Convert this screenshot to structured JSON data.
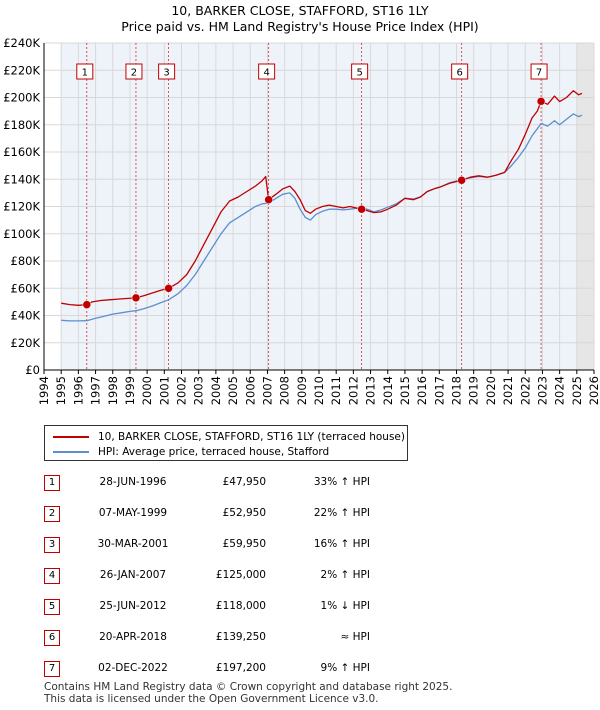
{
  "title_line1": "10, BARKER CLOSE, STAFFORD, ST16 1LY",
  "title_line2": "Price paid vs. HM Land Registry's House Price Index (HPI)",
  "colors": {
    "price": "#c00000",
    "hpi": "#5b8fd0",
    "grid": "#d8d8d8",
    "plot_bg": "#eef3fa",
    "future_bg": "#e6e6e6"
  },
  "chart_data": {
    "type": "line",
    "title": "10, BARKER CLOSE, STAFFORD, ST16 1LY — Price paid vs. HM Land Registry's House Price Index (HPI)",
    "xlabel": "",
    "ylabel": "",
    "xlim": [
      1994,
      2026
    ],
    "ylim": [
      0,
      240000
    ],
    "y_ticks": [
      "£0",
      "£20K",
      "£40K",
      "£60K",
      "£80K",
      "£100K",
      "£120K",
      "£140K",
      "£160K",
      "£180K",
      "£200K",
      "£220K",
      "£240K"
    ],
    "x_ticks": [
      "1994",
      "1995",
      "1996",
      "1997",
      "1998",
      "1999",
      "2000",
      "2001",
      "2002",
      "2003",
      "2004",
      "2005",
      "2006",
      "2007",
      "2008",
      "2009",
      "2010",
      "2011",
      "2012",
      "2013",
      "2014",
      "2015",
      "2016",
      "2017",
      "2018",
      "2019",
      "2020",
      "2021",
      "2022",
      "2023",
      "2024",
      "2025",
      "2026"
    ],
    "data_start_year": 1995.0,
    "future_start_year": 2025.0,
    "grid": true,
    "legend_position": "below",
    "series": [
      {
        "name": "10, BARKER CLOSE, STAFFORD, ST16 1LY (terraced house)",
        "points": [
          [
            1995.0,
            49000
          ],
          [
            1995.5,
            48000
          ],
          [
            1996.0,
            47500
          ],
          [
            1996.49,
            47950
          ],
          [
            1996.8,
            50000
          ],
          [
            1997.3,
            51000
          ],
          [
            1997.8,
            51500
          ],
          [
            1998.3,
            52000
          ],
          [
            1998.8,
            52500
          ],
          [
            1999.35,
            52950
          ],
          [
            1999.8,
            54500
          ],
          [
            2000.3,
            56500
          ],
          [
            2000.8,
            58500
          ],
          [
            2001.25,
            59950
          ],
          [
            2001.8,
            64000
          ],
          [
            2002.3,
            70000
          ],
          [
            2002.8,
            80000
          ],
          [
            2003.3,
            92000
          ],
          [
            2003.8,
            104000
          ],
          [
            2004.3,
            116000
          ],
          [
            2004.8,
            124000
          ],
          [
            2005.3,
            127000
          ],
          [
            2005.8,
            131000
          ],
          [
            2006.3,
            135000
          ],
          [
            2006.7,
            139000
          ],
          [
            2006.9,
            142000
          ],
          [
            2007.07,
            125000
          ],
          [
            2007.5,
            129000
          ],
          [
            2007.9,
            133000
          ],
          [
            2008.3,
            135000
          ],
          [
            2008.6,
            131000
          ],
          [
            2008.9,
            125000
          ],
          [
            2009.2,
            117000
          ],
          [
            2009.5,
            115000
          ],
          [
            2009.8,
            118000
          ],
          [
            2010.2,
            120000
          ],
          [
            2010.6,
            121000
          ],
          [
            2011.0,
            120000
          ],
          [
            2011.4,
            119000
          ],
          [
            2011.8,
            120000
          ],
          [
            2012.48,
            118000
          ],
          [
            2012.8,
            117000
          ],
          [
            2013.2,
            115500
          ],
          [
            2013.6,
            116000
          ],
          [
            2014.0,
            118000
          ],
          [
            2014.5,
            121000
          ],
          [
            2015.0,
            126000
          ],
          [
            2015.5,
            125000
          ],
          [
            2015.9,
            127000
          ],
          [
            2016.3,
            131000
          ],
          [
            2016.7,
            133000
          ],
          [
            2017.1,
            134500
          ],
          [
            2017.6,
            137000
          ],
          [
            2018.3,
            139250
          ],
          [
            2018.8,
            141500
          ],
          [
            2019.3,
            142500
          ],
          [
            2019.8,
            141500
          ],
          [
            2020.3,
            143000
          ],
          [
            2020.8,
            145000
          ],
          [
            2021.2,
            154000
          ],
          [
            2021.6,
            162000
          ],
          [
            2022.0,
            173000
          ],
          [
            2022.4,
            185000
          ],
          [
            2022.7,
            190000
          ],
          [
            2022.92,
            197200
          ],
          [
            2023.3,
            195000
          ],
          [
            2023.7,
            201000
          ],
          [
            2024.0,
            197000
          ],
          [
            2024.4,
            200000
          ],
          [
            2024.8,
            205000
          ],
          [
            2025.1,
            202000
          ],
          [
            2025.3,
            203000
          ]
        ]
      },
      {
        "name": "HPI: Average price, terraced house, Stafford",
        "points": [
          [
            1995.0,
            36500
          ],
          [
            1995.5,
            36000
          ],
          [
            1996.0,
            36000
          ],
          [
            1996.49,
            36200
          ],
          [
            1997.0,
            38000
          ],
          [
            1997.5,
            39500
          ],
          [
            1998.0,
            41000
          ],
          [
            1998.5,
            42000
          ],
          [
            1999.0,
            43000
          ],
          [
            1999.35,
            43500
          ],
          [
            1999.8,
            45000
          ],
          [
            2000.3,
            47000
          ],
          [
            2000.8,
            49500
          ],
          [
            2001.25,
            51500
          ],
          [
            2001.8,
            56000
          ],
          [
            2002.3,
            62000
          ],
          [
            2002.8,
            70000
          ],
          [
            2003.3,
            80000
          ],
          [
            2003.8,
            90000
          ],
          [
            2004.3,
            100000
          ],
          [
            2004.8,
            108000
          ],
          [
            2005.3,
            112000
          ],
          [
            2005.8,
            116000
          ],
          [
            2006.3,
            120000
          ],
          [
            2006.7,
            122000
          ],
          [
            2007.07,
            122500
          ],
          [
            2007.5,
            126000
          ],
          [
            2007.9,
            129000
          ],
          [
            2008.3,
            130000
          ],
          [
            2008.6,
            126000
          ],
          [
            2008.9,
            118000
          ],
          [
            2009.2,
            112000
          ],
          [
            2009.5,
            110000
          ],
          [
            2009.8,
            114000
          ],
          [
            2010.2,
            116500
          ],
          [
            2010.6,
            118000
          ],
          [
            2011.0,
            118000
          ],
          [
            2011.4,
            117500
          ],
          [
            2011.8,
            118000
          ],
          [
            2012.48,
            119200
          ],
          [
            2012.8,
            118000
          ],
          [
            2013.2,
            116000
          ],
          [
            2013.6,
            117500
          ],
          [
            2014.0,
            119500
          ],
          [
            2014.5,
            122000
          ],
          [
            2015.0,
            126000
          ],
          [
            2015.5,
            125500
          ],
          [
            2015.9,
            127000
          ],
          [
            2016.3,
            131000
          ],
          [
            2016.7,
            133000
          ],
          [
            2017.1,
            134500
          ],
          [
            2017.6,
            137500
          ],
          [
            2018.3,
            139800
          ],
          [
            2018.8,
            141000
          ],
          [
            2019.3,
            142000
          ],
          [
            2019.8,
            141500
          ],
          [
            2020.3,
            143000
          ],
          [
            2020.8,
            145000
          ],
          [
            2021.2,
            150000
          ],
          [
            2021.6,
            156000
          ],
          [
            2022.0,
            163000
          ],
          [
            2022.4,
            172000
          ],
          [
            2022.7,
            177000
          ],
          [
            2022.92,
            181000
          ],
          [
            2023.3,
            179000
          ],
          [
            2023.7,
            183000
          ],
          [
            2024.0,
            180000
          ],
          [
            2024.4,
            184000
          ],
          [
            2024.8,
            188000
          ],
          [
            2025.1,
            186000
          ],
          [
            2025.3,
            187000
          ]
        ]
      }
    ],
    "annotations": [
      {
        "label": "1",
        "x": 1996.49,
        "y": 47950
      },
      {
        "label": "2",
        "x": 1999.35,
        "y": 52950
      },
      {
        "label": "3",
        "x": 2001.25,
        "y": 59950
      },
      {
        "label": "4",
        "x": 2007.07,
        "y": 125000
      },
      {
        "label": "5",
        "x": 2012.48,
        "y": 118000
      },
      {
        "label": "6",
        "x": 2018.3,
        "y": 139250
      },
      {
        "label": "7",
        "x": 2022.92,
        "y": 197200
      }
    ]
  },
  "legend": {
    "price_label": "10, BARKER CLOSE, STAFFORD, ST16 1LY (terraced house)",
    "hpi_label": "HPI: Average price, terraced house, Stafford"
  },
  "sales": [
    {
      "num": "1",
      "date": "28-JUN-1996",
      "price": "£47,950",
      "hpi": "33% ↑ HPI"
    },
    {
      "num": "2",
      "date": "07-MAY-1999",
      "price": "£52,950",
      "hpi": "22% ↑ HPI"
    },
    {
      "num": "3",
      "date": "30-MAR-2001",
      "price": "£59,950",
      "hpi": "16% ↑ HPI"
    },
    {
      "num": "4",
      "date": "26-JAN-2007",
      "price": "£125,000",
      "hpi": "2% ↑ HPI"
    },
    {
      "num": "5",
      "date": "25-JUN-2012",
      "price": "£118,000",
      "hpi": "1% ↓ HPI"
    },
    {
      "num": "6",
      "date": "20-APR-2018",
      "price": "£139,250",
      "hpi": "≈ HPI"
    },
    {
      "num": "7",
      "date": "02-DEC-2022",
      "price": "£197,200",
      "hpi": "9% ↑ HPI"
    }
  ],
  "footer_line1": "Contains HM Land Registry data © Crown copyright and database right 2025.",
  "footer_line2": "This data is licensed under the Open Government Licence v3.0."
}
